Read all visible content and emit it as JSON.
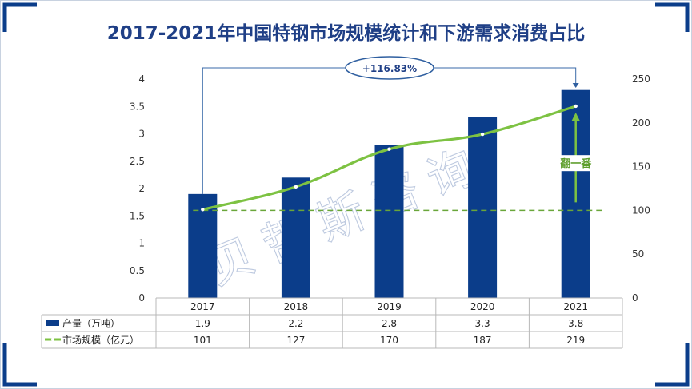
{
  "title": "2017-2021年中国特钢市场规模统计和下游需求消费占比",
  "watermark": "贝哲斯咨询",
  "annotations": {
    "growth_label": "+116.83%",
    "double_label": "翻一番"
  },
  "colors": {
    "bar": "#0b3d8a",
    "line": "#7dc242",
    "title": "#1f3f86",
    "frame": "#0b3d8a"
  },
  "chart_data": {
    "type": "bar",
    "categories": [
      "2017",
      "2018",
      "2019",
      "2020",
      "2021"
    ],
    "series": [
      {
        "name": "产量（万吨）",
        "type": "bar",
        "axis": "left",
        "values": [
          1.9,
          2.2,
          2.8,
          3.3,
          3.8
        ]
      },
      {
        "name": "市场规模（亿元）",
        "type": "line",
        "axis": "right",
        "values": [
          101,
          127,
          170,
          187,
          219
        ]
      }
    ],
    "left_axis": {
      "ylim": [
        0,
        4
      ],
      "ticks": [
        "0",
        "0.5",
        "1",
        "1.5",
        "2",
        "2.5",
        "3",
        "3.5",
        "4"
      ]
    },
    "right_axis": {
      "ylim": [
        0,
        250
      ],
      "ticks": [
        "0",
        "50",
        "100",
        "150",
        "200",
        "250"
      ]
    },
    "reference_line": 100,
    "grid": false,
    "legend": "data-table"
  }
}
